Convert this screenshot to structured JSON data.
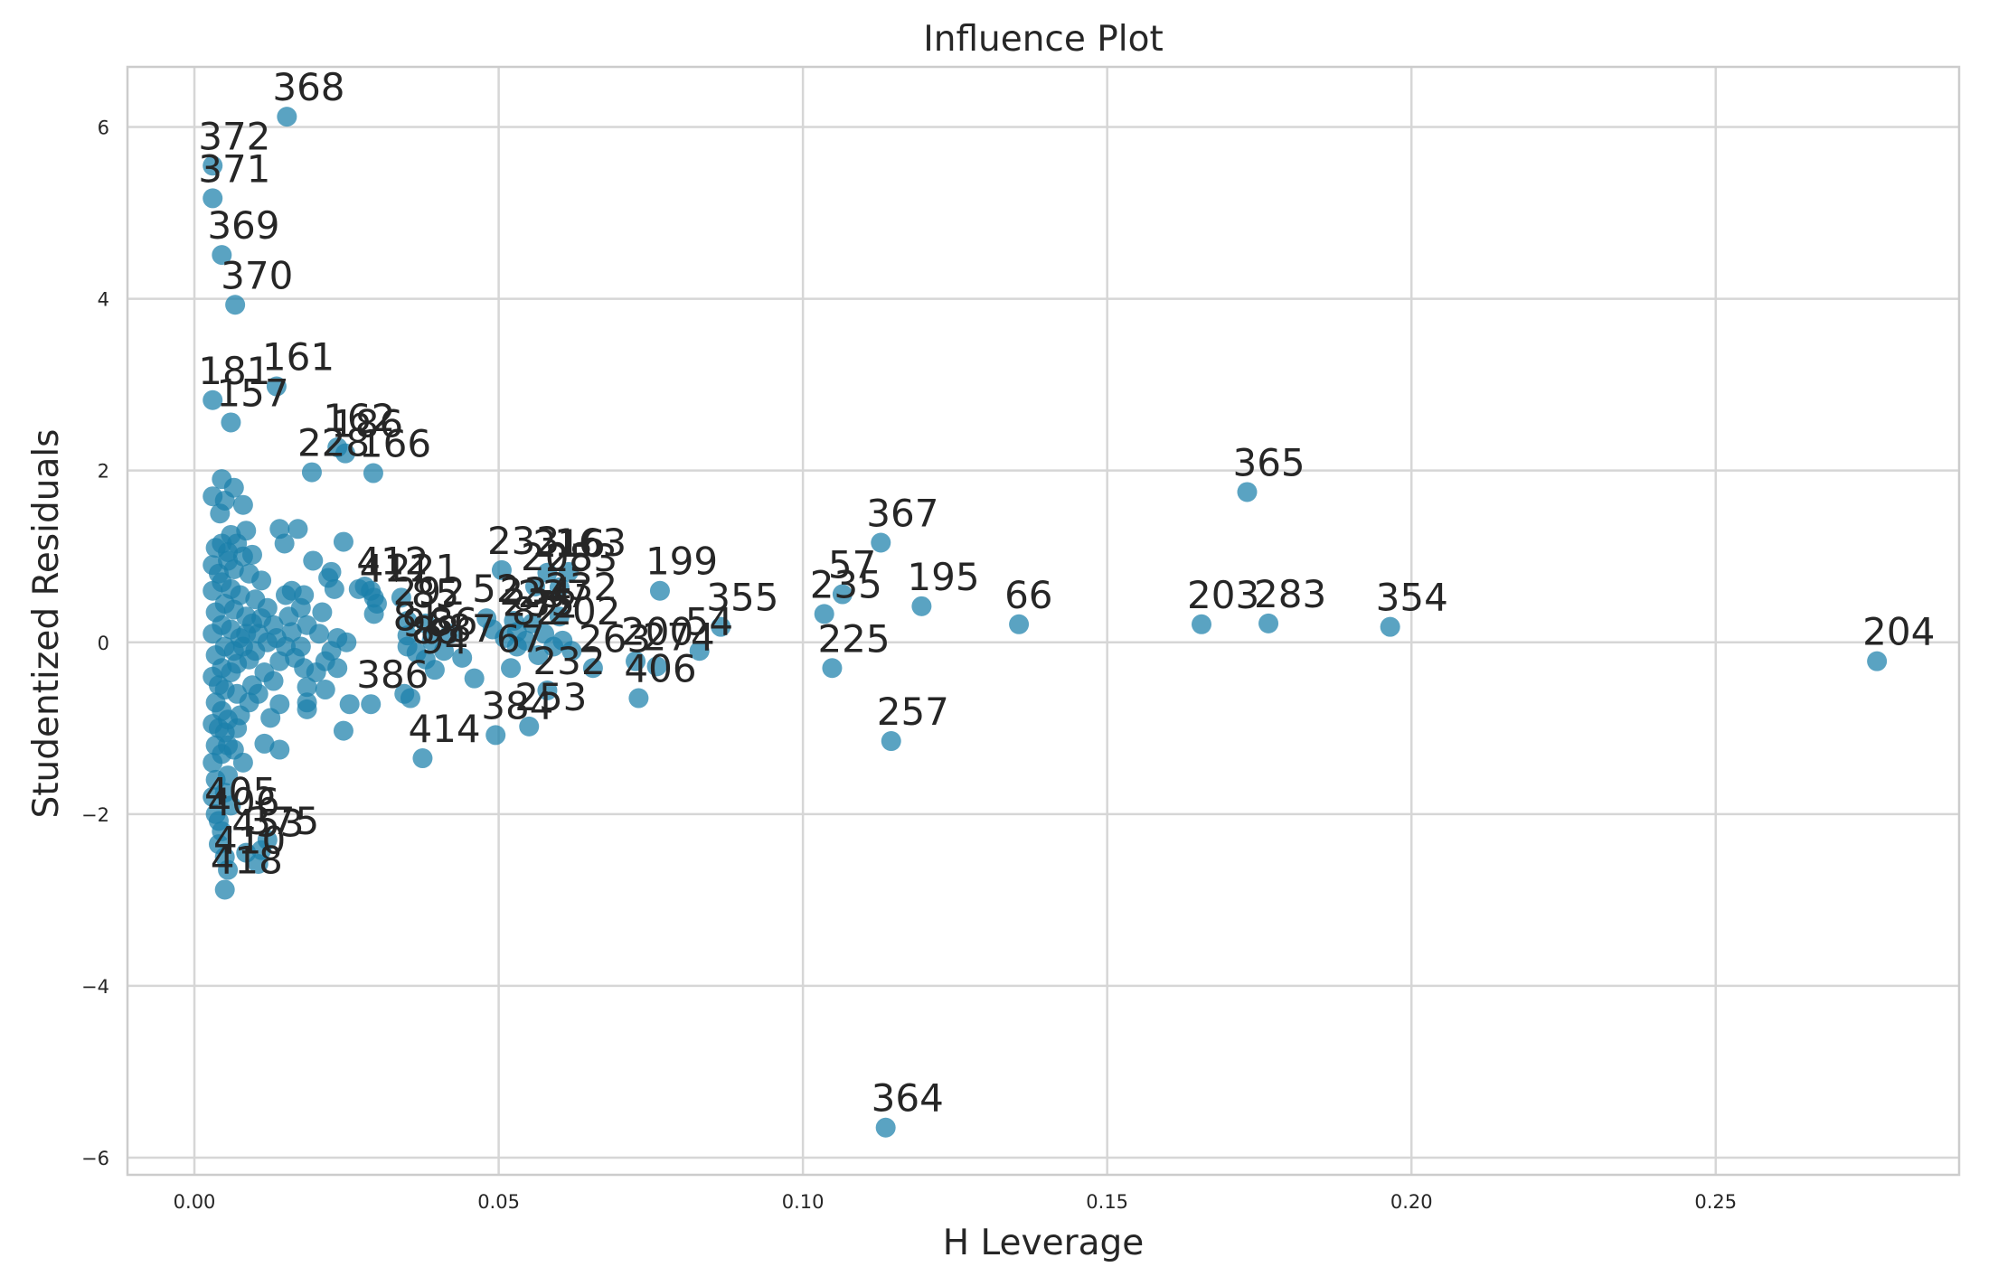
{
  "chart_data": {
    "type": "scatter",
    "title": "Influence Plot",
    "xlabel": "H Leverage",
    "ylabel": "Studentized Residuals",
    "xlim": [
      -0.011,
      0.29
    ],
    "ylim": [
      -6.2,
      6.7
    ],
    "xticks": [
      0.0,
      0.05,
      0.1,
      0.15,
      0.2,
      0.25
    ],
    "xtick_labels": [
      "0.00",
      "0.05",
      "0.10",
      "0.15",
      "0.20",
      "0.25"
    ],
    "yticks": [
      6,
      4,
      2,
      0,
      -2,
      -4,
      -6
    ],
    "ytick_labels": [
      "6",
      "4",
      "2",
      "0",
      "−2",
      "−4",
      "−6"
    ],
    "grid": true,
    "point_color": "#1a7fab",
    "labeled_points": [
      {
        "label": "368",
        "x": 0.0152,
        "y": 6.12
      },
      {
        "label": "372",
        "x": 0.003,
        "y": 5.55
      },
      {
        "label": "371",
        "x": 0.003,
        "y": 5.17
      },
      {
        "label": "369",
        "x": 0.0045,
        "y": 4.51
      },
      {
        "label": "370",
        "x": 0.0067,
        "y": 3.93
      },
      {
        "label": "161",
        "x": 0.0135,
        "y": 2.98
      },
      {
        "label": "181",
        "x": 0.003,
        "y": 2.82
      },
      {
        "label": "157",
        "x": 0.006,
        "y": 2.56
      },
      {
        "label": "162",
        "x": 0.0235,
        "y": 2.27
      },
      {
        "label": "186",
        "x": 0.0248,
        "y": 2.2
      },
      {
        "label": "228",
        "x": 0.0193,
        "y": 1.98
      },
      {
        "label": "166",
        "x": 0.0294,
        "y": 1.97
      },
      {
        "label": "365",
        "x": 0.173,
        "y": 1.75
      },
      {
        "label": "367",
        "x": 0.1128,
        "y": 1.16
      },
      {
        "label": "233",
        "x": 0.0505,
        "y": 0.84
      },
      {
        "label": "216",
        "x": 0.058,
        "y": 0.81
      },
      {
        "label": "163",
        "x": 0.0615,
        "y": 0.82
      },
      {
        "label": "199",
        "x": 0.0765,
        "y": 0.6
      },
      {
        "label": "412",
        "x": 0.029,
        "y": 0.6
      },
      {
        "label": "411",
        "x": 0.0295,
        "y": 0.52
      },
      {
        "label": "221",
        "x": 0.034,
        "y": 0.52
      },
      {
        "label": "208",
        "x": 0.056,
        "y": 0.65
      },
      {
        "label": "253",
        "x": 0.06,
        "y": 0.64
      },
      {
        "label": "57",
        "x": 0.1065,
        "y": 0.56
      },
      {
        "label": "235",
        "x": 0.1035,
        "y": 0.33
      },
      {
        "label": "195",
        "x": 0.1195,
        "y": 0.42
      },
      {
        "label": "66",
        "x": 0.1355,
        "y": 0.21
      },
      {
        "label": "203",
        "x": 0.1655,
        "y": 0.21
      },
      {
        "label": "283",
        "x": 0.1765,
        "y": 0.22
      },
      {
        "label": "354",
        "x": 0.1965,
        "y": 0.18
      },
      {
        "label": "355",
        "x": 0.0865,
        "y": 0.18
      },
      {
        "label": "54",
        "x": 0.083,
        "y": -0.1
      },
      {
        "label": "292",
        "x": 0.035,
        "y": 0.25
      },
      {
        "label": "85",
        "x": 0.038,
        "y": 0.22
      },
      {
        "label": "52",
        "x": 0.048,
        "y": 0.28
      },
      {
        "label": "234",
        "x": 0.0525,
        "y": 0.25
      },
      {
        "label": "237",
        "x": 0.0555,
        "y": 0.22
      },
      {
        "label": "202",
        "x": 0.0605,
        "y": 0.02
      },
      {
        "label": "200",
        "x": 0.0725,
        "y": -0.22
      },
      {
        "label": "274",
        "x": 0.076,
        "y": -0.28
      },
      {
        "label": "263",
        "x": 0.0655,
        "y": -0.3
      },
      {
        "label": "232",
        "x": 0.058,
        "y": -0.56
      },
      {
        "label": "406",
        "x": 0.073,
        "y": -0.65
      },
      {
        "label": "225",
        "x": 0.1048,
        "y": -0.3
      },
      {
        "label": "204",
        "x": 0.2765,
        "y": -0.22
      },
      {
        "label": "386",
        "x": 0.029,
        "y": -0.72
      },
      {
        "label": "384",
        "x": 0.0495,
        "y": -1.08
      },
      {
        "label": "253",
        "x": 0.055,
        "y": -0.98
      },
      {
        "label": "414",
        "x": 0.0375,
        "y": -1.35
      },
      {
        "label": "257",
        "x": 0.1145,
        "y": -1.15
      },
      {
        "label": "405",
        "x": 0.004,
        "y": -2.08
      },
      {
        "label": "406",
        "x": 0.0045,
        "y": -2.2
      },
      {
        "label": "453",
        "x": 0.0085,
        "y": -2.45
      },
      {
        "label": "375",
        "x": 0.011,
        "y": -2.42
      },
      {
        "label": "410",
        "x": 0.0055,
        "y": -2.65
      },
      {
        "label": "418",
        "x": 0.005,
        "y": -2.88
      },
      {
        "label": "364",
        "x": 0.1136,
        "y": -5.65
      }
    ],
    "labeled_points_extra": [
      {
        "label": "81",
        "x": 0.035,
        "y": -0.05
      },
      {
        "label": "96",
        "x": 0.0365,
        "y": -0.12
      },
      {
        "label": "88",
        "x": 0.038,
        "y": -0.2
      },
      {
        "label": "86",
        "x": 0.041,
        "y": -0.1
      },
      {
        "label": "87",
        "x": 0.044,
        "y": -0.18
      },
      {
        "label": "94",
        "x": 0.0395,
        "y": -0.32
      },
      {
        "label": "67",
        "x": 0.052,
        "y": -0.3
      },
      {
        "label": "82",
        "x": 0.0545,
        "y": 0.02
      },
      {
        "label": "235",
        "x": 0.053,
        "y": 0.12
      },
      {
        "label": "72",
        "x": 0.0575,
        "y": 0.1
      },
      {
        "label": "232",
        "x": 0.06,
        "y": 0.3
      }
    ],
    "cluster_points": [
      {
        "x": 0.003,
        "y": 1.7
      },
      {
        "x": 0.0045,
        "y": 1.9
      },
      {
        "x": 0.005,
        "y": 1.65
      },
      {
        "x": 0.0065,
        "y": 1.8
      },
      {
        "x": 0.008,
        "y": 1.6
      },
      {
        "x": 0.0042,
        "y": 1.5
      },
      {
        "x": 0.0085,
        "y": 1.3
      },
      {
        "x": 0.006,
        "y": 1.25
      },
      {
        "x": 0.014,
        "y": 1.32
      },
      {
        "x": 0.017,
        "y": 1.32
      },
      {
        "x": 0.0148,
        "y": 1.15
      },
      {
        "x": 0.0245,
        "y": 1.17
      },
      {
        "x": 0.0095,
        "y": 1.02
      },
      {
        "x": 0.011,
        "y": 0.72
      },
      {
        "x": 0.0195,
        "y": 0.95
      },
      {
        "x": 0.0225,
        "y": 0.82
      },
      {
        "x": 0.022,
        "y": 0.75
      },
      {
        "x": 0.016,
        "y": 0.6
      },
      {
        "x": 0.018,
        "y": 0.55
      },
      {
        "x": 0.015,
        "y": 0.55
      },
      {
        "x": 0.023,
        "y": 0.62
      },
      {
        "x": 0.027,
        "y": 0.62
      },
      {
        "x": 0.0295,
        "y": 0.33
      },
      {
        "x": 0.0175,
        "y": 0.4
      },
      {
        "x": 0.021,
        "y": 0.35
      },
      {
        "x": 0.0185,
        "y": 0.2
      },
      {
        "x": 0.0205,
        "y": 0.1
      },
      {
        "x": 0.0235,
        "y": 0.05
      },
      {
        "x": 0.025,
        "y": 0.0
      },
      {
        "x": 0.0225,
        "y": -0.1
      },
      {
        "x": 0.0175,
        "y": -0.05
      },
      {
        "x": 0.0165,
        "y": -0.18
      },
      {
        "x": 0.018,
        "y": -0.3
      },
      {
        "x": 0.02,
        "y": -0.35
      },
      {
        "x": 0.0215,
        "y": -0.22
      },
      {
        "x": 0.0235,
        "y": -0.3
      },
      {
        "x": 0.0185,
        "y": -0.52
      },
      {
        "x": 0.0185,
        "y": -0.7
      },
      {
        "x": 0.0185,
        "y": -0.78
      },
      {
        "x": 0.0215,
        "y": -0.55
      },
      {
        "x": 0.0255,
        "y": -0.72
      },
      {
        "x": 0.0245,
        "y": -1.03
      },
      {
        "x": 0.014,
        "y": -0.72
      },
      {
        "x": 0.0125,
        "y": -0.88
      },
      {
        "x": 0.014,
        "y": -1.25
      },
      {
        "x": 0.0115,
        "y": -1.18
      },
      {
        "x": 0.0075,
        "y": -0.85
      },
      {
        "x": 0.007,
        "y": -0.6
      },
      {
        "x": 0.008,
        "y": -1.4
      },
      {
        "x": 0.0065,
        "y": -1.25
      },
      {
        "x": 0.0055,
        "y": -1.55
      },
      {
        "x": 0.005,
        "y": -1.75
      },
      {
        "x": 0.006,
        "y": -1.9
      },
      {
        "x": 0.0035,
        "y": -1.6
      },
      {
        "x": 0.003,
        "y": -1.8
      },
      {
        "x": 0.0035,
        "y": -2.0
      },
      {
        "x": 0.004,
        "y": -2.35
      },
      {
        "x": 0.005,
        "y": -2.5
      },
      {
        "x": 0.0105,
        "y": -2.58
      },
      {
        "x": 0.012,
        "y": -2.3
      },
      {
        "x": 0.015,
        "y": -0.05
      },
      {
        "x": 0.013,
        "y": 0.2
      },
      {
        "x": 0.012,
        "y": 0.4
      },
      {
        "x": 0.0105,
        "y": 0.1
      },
      {
        "x": 0.01,
        "y": -0.1
      },
      {
        "x": 0.0115,
        "y": -0.35
      },
      {
        "x": 0.013,
        "y": -0.45
      },
      {
        "x": 0.0095,
        "y": -0.5
      },
      {
        "x": 0.0085,
        "y": 0.3
      },
      {
        "x": 0.0075,
        "y": 0.55
      },
      {
        "x": 0.0065,
        "y": 0.85
      },
      {
        "x": 0.0055,
        "y": 1.05
      },
      {
        "x": 0.0045,
        "y": 1.15
      },
      {
        "x": 0.0035,
        "y": 1.1
      },
      {
        "x": 0.003,
        "y": 0.9
      },
      {
        "x": 0.003,
        "y": 0.6
      },
      {
        "x": 0.0035,
        "y": 0.35
      },
      {
        "x": 0.003,
        "y": 0.1
      },
      {
        "x": 0.0035,
        "y": -0.15
      },
      {
        "x": 0.003,
        "y": -0.4
      },
      {
        "x": 0.0035,
        "y": -0.7
      },
      {
        "x": 0.003,
        "y": -0.95
      },
      {
        "x": 0.0035,
        "y": -1.2
      },
      {
        "x": 0.003,
        "y": -1.4
      },
      {
        "x": 0.0045,
        "y": 0.7
      },
      {
        "x": 0.005,
        "y": 0.45
      },
      {
        "x": 0.0045,
        "y": 0.2
      },
      {
        "x": 0.005,
        "y": -0.05
      },
      {
        "x": 0.0045,
        "y": -0.3
      },
      {
        "x": 0.005,
        "y": -0.55
      },
      {
        "x": 0.0045,
        "y": -0.8
      },
      {
        "x": 0.005,
        "y": -1.05
      },
      {
        "x": 0.0045,
        "y": -1.3
      },
      {
        "x": 0.006,
        "y": 0.62
      },
      {
        "x": 0.0065,
        "y": 0.38
      },
      {
        "x": 0.006,
        "y": 0.15
      },
      {
        "x": 0.0065,
        "y": -0.1
      },
      {
        "x": 0.006,
        "y": -0.35
      },
      {
        "x": 0.007,
        "y": -0.25
      },
      {
        "x": 0.0075,
        "y": 0.05
      },
      {
        "x": 0.008,
        "y": -0.05
      },
      {
        "x": 0.0085,
        "y": 0.1
      },
      {
        "x": 0.009,
        "y": -0.2
      },
      {
        "x": 0.0095,
        "y": 0.22
      },
      {
        "x": 0.011,
        "y": 0.28
      },
      {
        "x": 0.012,
        "y": 0.0
      },
      {
        "x": 0.0135,
        "y": 0.05
      },
      {
        "x": 0.014,
        "y": -0.22
      },
      {
        "x": 0.0155,
        "y": 0.3
      },
      {
        "x": 0.016,
        "y": 0.12
      },
      {
        "x": 0.01,
        "y": 0.5
      },
      {
        "x": 0.009,
        "y": 0.8
      },
      {
        "x": 0.008,
        "y": 1.0
      },
      {
        "x": 0.007,
        "y": 1.15
      },
      {
        "x": 0.0055,
        "y": 0.95
      },
      {
        "x": 0.004,
        "y": 0.8
      },
      {
        "x": 0.004,
        "y": -0.5
      },
      {
        "x": 0.004,
        "y": -1.0
      },
      {
        "x": 0.0055,
        "y": -0.9
      },
      {
        "x": 0.0055,
        "y": -1.2
      },
      {
        "x": 0.007,
        "y": -1.0
      },
      {
        "x": 0.009,
        "y": -0.7
      },
      {
        "x": 0.0105,
        "y": -0.6
      },
      {
        "x": 0.035,
        "y": 0.08
      },
      {
        "x": 0.0345,
        "y": -0.6
      },
      {
        "x": 0.0355,
        "y": -0.65
      },
      {
        "x": 0.046,
        "y": -0.42
      },
      {
        "x": 0.051,
        "y": 0.05
      },
      {
        "x": 0.053,
        "y": -0.05
      },
      {
        "x": 0.0565,
        "y": -0.15
      },
      {
        "x": 0.059,
        "y": -0.05
      },
      {
        "x": 0.062,
        "y": -0.1
      },
      {
        "x": 0.049,
        "y": 0.15
      },
      {
        "x": 0.042,
        "y": 0.1
      },
      {
        "x": 0.039,
        "y": 0.02
      },
      {
        "x": 0.028,
        "y": 0.65
      },
      {
        "x": 0.03,
        "y": 0.45
      }
    ]
  }
}
